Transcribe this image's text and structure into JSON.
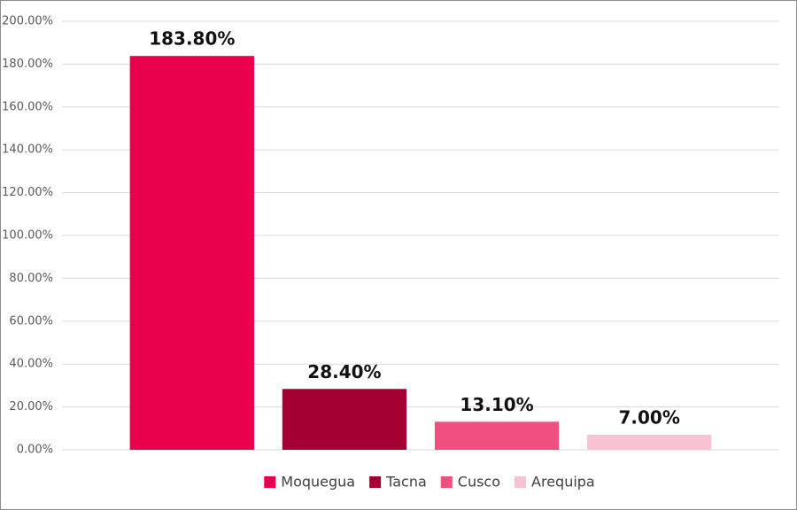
{
  "chart_data": {
    "type": "bar",
    "categories": [
      null
    ],
    "series": [
      {
        "name": "Moquegua",
        "color": "#e8004c",
        "values": [
          183.8
        ],
        "value_labels": [
          "183.80%"
        ]
      },
      {
        "name": "Tacna",
        "color": "#a50034",
        "values": [
          28.4
        ],
        "value_labels": [
          "28.40%"
        ]
      },
      {
        "name": "Cusco",
        "color": "#f0507f",
        "values": [
          13.1
        ],
        "value_labels": [
          "13.10%"
        ]
      },
      {
        "name": "Arequipa",
        "color": "#f7c3d3",
        "values": [
          7.0
        ],
        "value_labels": [
          "7.00%"
        ]
      }
    ],
    "ylim": [
      0,
      200
    ],
    "yticks": [
      {
        "value": 0,
        "label": "0.00%"
      },
      {
        "value": 20,
        "label": "20.00%"
      },
      {
        "value": 40,
        "label": "40.00%"
      },
      {
        "value": 60,
        "label": "60.00%"
      },
      {
        "value": 80,
        "label": "80.00%"
      },
      {
        "value": 100,
        "label": "100.00%"
      },
      {
        "value": 120,
        "label": "120.00%"
      },
      {
        "value": 140,
        "label": "140.00%"
      },
      {
        "value": 160,
        "label": "160.00%"
      },
      {
        "value": 180,
        "label": "180.00%"
      },
      {
        "value": 200,
        "label": "200.00%"
      }
    ],
    "grid": true,
    "legend": "bottom"
  }
}
